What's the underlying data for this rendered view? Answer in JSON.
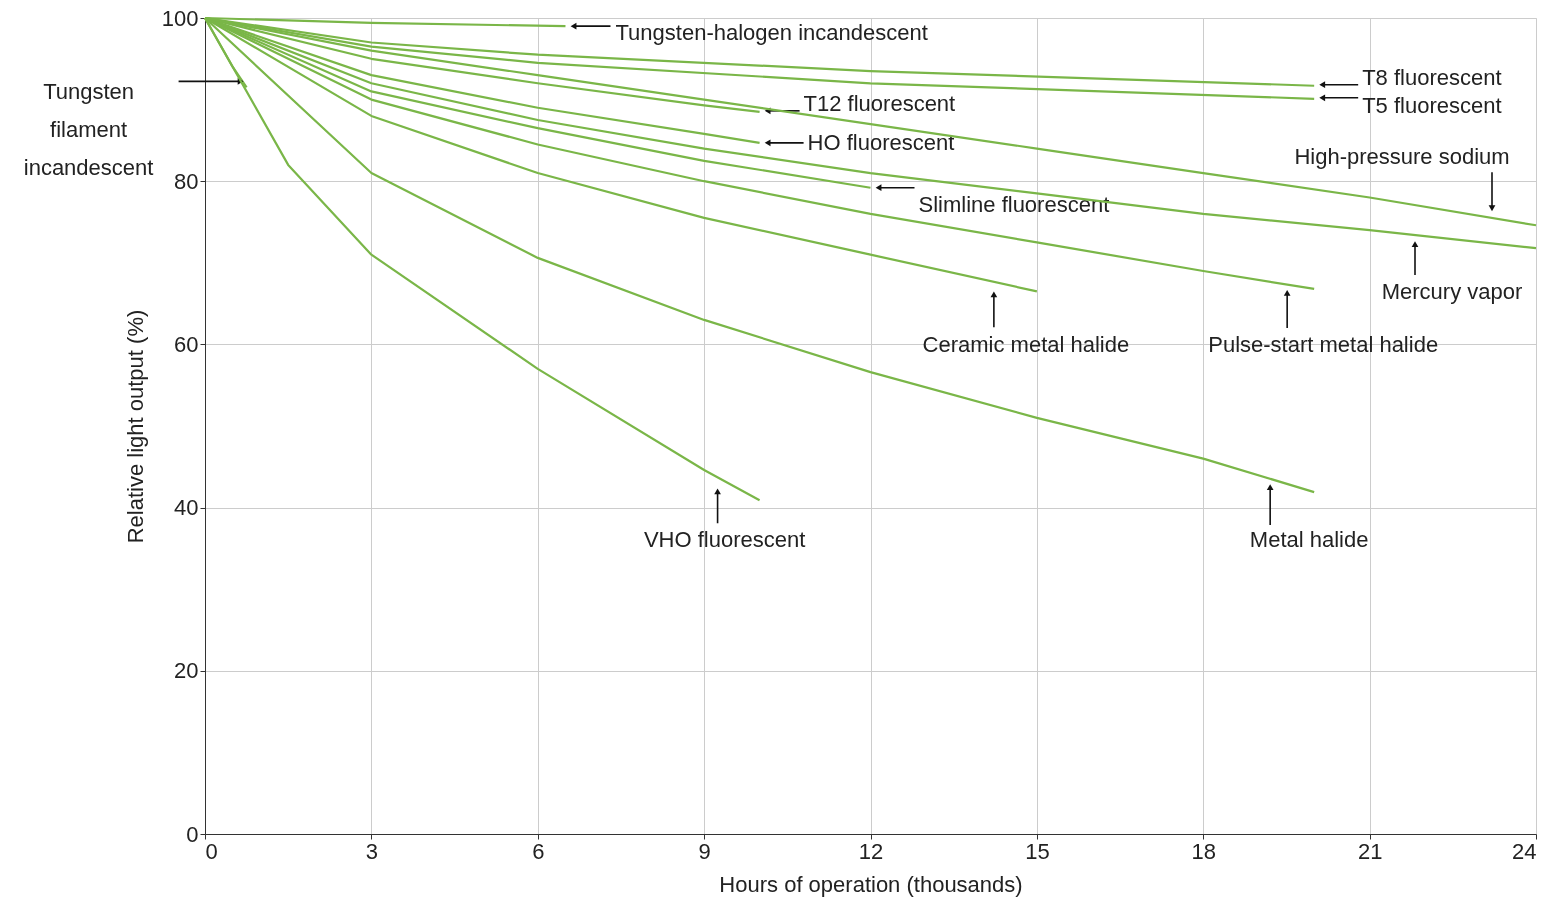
{
  "chart_data": {
    "type": "line",
    "xlabel": "Hours of operation (thousands)",
    "ylabel": "Relative light output (%)",
    "xlim": [
      0,
      24
    ],
    "xticks": [
      0,
      3,
      6,
      9,
      12,
      15,
      18,
      21,
      24
    ],
    "ylim": [
      0,
      100
    ],
    "yticks": [
      0,
      20,
      40,
      60,
      80,
      100
    ],
    "grid": true,
    "marker": "none",
    "line_style": "solid",
    "series": [
      {
        "name": "Tungsten filament incandescent",
        "color": "#7ab648",
        "x": [
          0,
          0.25,
          0.5,
          0.75
        ],
        "values": [
          100,
          97,
          94,
          91.5
        ]
      },
      {
        "name": "Tungsten-halogen incandescent",
        "color": "#7ab648",
        "x": [
          0,
          3,
          6.5
        ],
        "values": [
          100,
          99.4,
          99
        ]
      },
      {
        "name": "T8 fluorescent",
        "color": "#7ab648",
        "x": [
          0,
          3,
          6,
          12,
          20
        ],
        "values": [
          100,
          97,
          95.5,
          93.5,
          91.7
        ]
      },
      {
        "name": "T5 fluorescent",
        "color": "#7ab648",
        "x": [
          0,
          3,
          6,
          12,
          20
        ],
        "values": [
          100,
          96.5,
          94.5,
          92,
          90.1
        ]
      },
      {
        "name": "T12 fluorescent",
        "color": "#7ab648",
        "x": [
          0,
          3,
          6,
          9,
          10
        ],
        "values": [
          100,
          95,
          92,
          89.3,
          88.5
        ]
      },
      {
        "name": "HO fluorescent",
        "color": "#7ab648",
        "x": [
          0,
          3,
          6,
          9,
          10
        ],
        "values": [
          100,
          93,
          89,
          85.8,
          84.7
        ]
      },
      {
        "name": "Slimline fluorescent",
        "color": "#7ab648",
        "x": [
          0,
          3,
          6,
          9,
          12
        ],
        "values": [
          100,
          91,
          86.5,
          82.5,
          79.2
        ]
      },
      {
        "name": "High-pressure sodium",
        "color": "#7ab648",
        "x": [
          0,
          3,
          6,
          9,
          12,
          15,
          18,
          21,
          24
        ],
        "values": [
          100,
          96,
          93,
          90,
          87,
          84,
          81,
          78,
          74.6
        ]
      },
      {
        "name": "Mercury vapor",
        "color": "#7ab648",
        "x": [
          0,
          3,
          6,
          9,
          12,
          15,
          18,
          21,
          24
        ],
        "values": [
          100,
          92,
          87.5,
          84,
          81,
          78.5,
          76,
          74,
          71.8
        ]
      },
      {
        "name": "Ceramic metal halide",
        "color": "#7ab648",
        "x": [
          0,
          3,
          6,
          9,
          12,
          15
        ],
        "values": [
          100,
          88,
          81,
          75.5,
          71,
          66.5
        ]
      },
      {
        "name": "Pulse-start metal halide",
        "color": "#7ab648",
        "x": [
          0,
          3,
          6,
          9,
          12,
          15,
          18,
          20
        ],
        "values": [
          100,
          90,
          84.5,
          80,
          76,
          72.5,
          69,
          66.8
        ]
      },
      {
        "name": "Metal halide",
        "color": "#7ab648",
        "x": [
          0,
          3,
          6,
          9,
          12,
          15,
          18,
          20
        ],
        "values": [
          100,
          81,
          70.6,
          63,
          56.6,
          51,
          46,
          41.9
        ]
      },
      {
        "name": "VHO fluorescent",
        "color": "#7ab648",
        "x": [
          0,
          1.5,
          3,
          6,
          9,
          10
        ],
        "values": [
          100,
          82,
          71,
          57,
          44.6,
          40.9
        ]
      }
    ]
  }
}
